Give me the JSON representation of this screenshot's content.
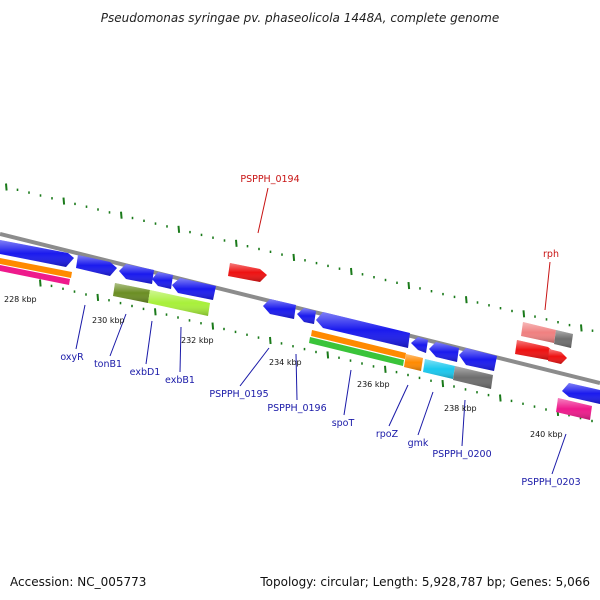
{
  "title": "Pseudomonas syringae pv. phaseolicola 1448A, complete genome",
  "footer": {
    "accession": "Accession: NC_005773",
    "summary": "Topology: circular; Length: 5,928,787 bp; Genes: 5,066"
  },
  "colors": {
    "backbone": "#8c8c8c",
    "tick": "#1a7a1a",
    "label_blue": "#1a1aa8",
    "label_red": "#c81414"
  },
  "kbp_labels": [
    "228 kbp",
    "230 kbp",
    "232 kbp",
    "234 kbp",
    "236 kbp",
    "238 kbp",
    "240 kbp"
  ],
  "gene_labels": [
    {
      "text": "oxyR",
      "color": "blue"
    },
    {
      "text": "tonB1",
      "color": "blue"
    },
    {
      "text": "exbD1",
      "color": "blue"
    },
    {
      "text": "exbB1",
      "color": "blue"
    },
    {
      "text": "PSPPH_0194",
      "color": "red"
    },
    {
      "text": "PSPPH_0195",
      "color": "blue"
    },
    {
      "text": "PSPPH_0196",
      "color": "blue"
    },
    {
      "text": "spoT",
      "color": "blue"
    },
    {
      "text": "rpoZ",
      "color": "blue"
    },
    {
      "text": "gmk",
      "color": "blue"
    },
    {
      "text": "PSPPH_0200",
      "color": "blue"
    },
    {
      "text": "rph",
      "color": "red"
    },
    {
      "text": "PSPPH_0203",
      "color": "blue"
    }
  ]
}
